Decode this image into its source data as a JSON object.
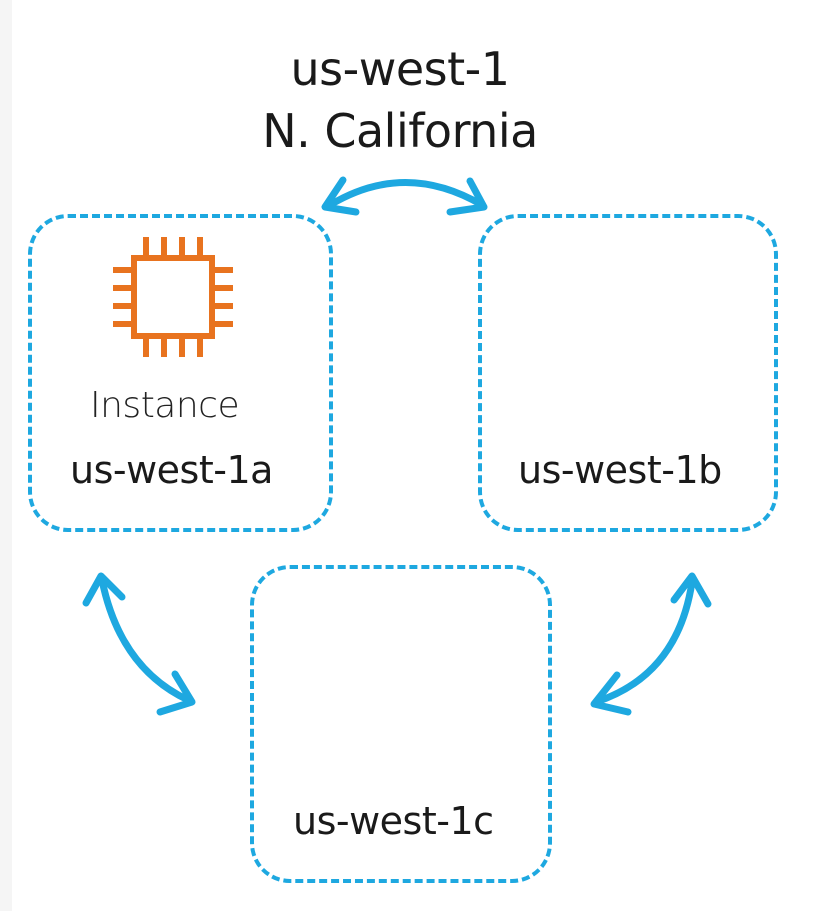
{
  "region": {
    "code": "us-west-1",
    "name": "N. California"
  },
  "zones": [
    {
      "label": "us-west-1a"
    },
    {
      "label": "us-west-1b"
    },
    {
      "label": "us-west-1c"
    }
  ],
  "instance": {
    "label": "Instance",
    "icon": "ec2-instance-chip-icon",
    "color": "#e8731f"
  },
  "colors": {
    "zone_border": "#1ea8e0",
    "arrow": "#1ea8e0"
  }
}
